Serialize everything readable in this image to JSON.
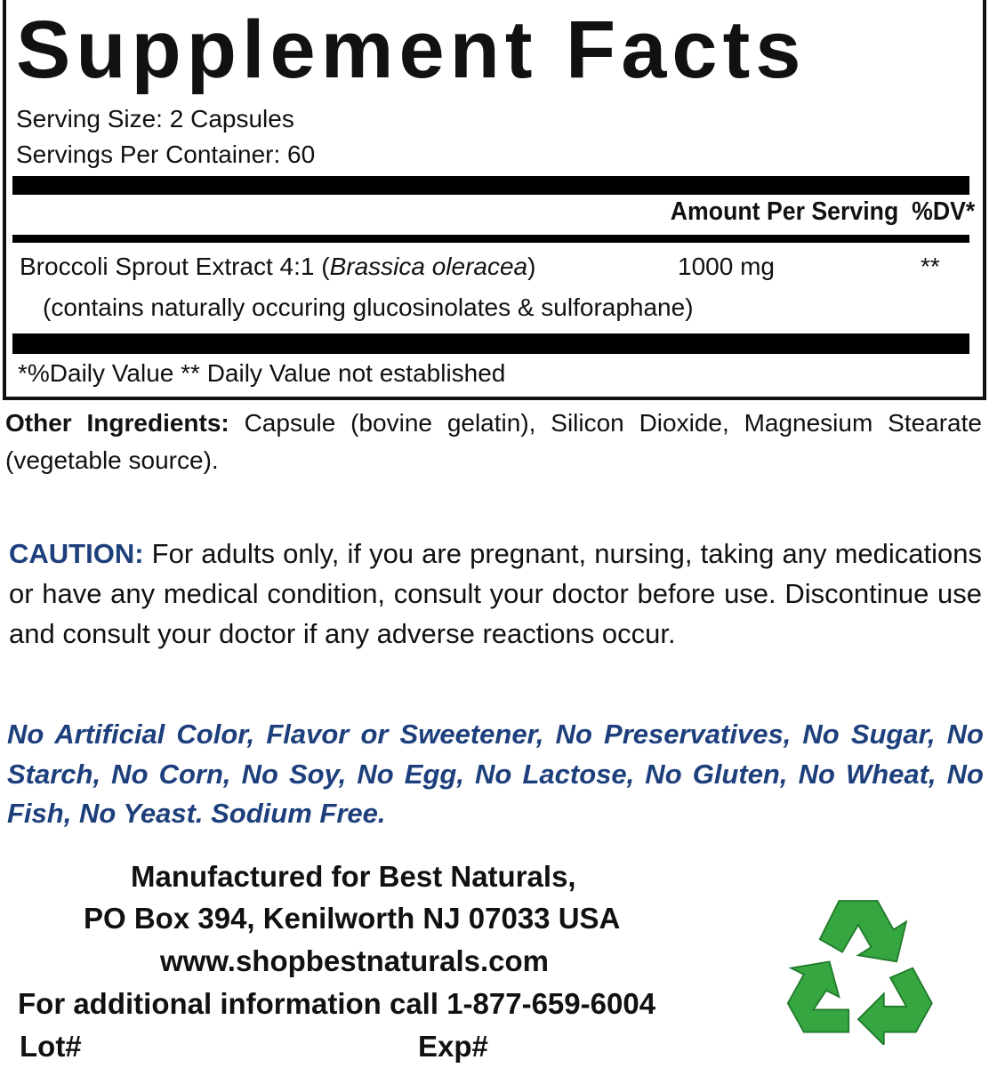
{
  "facts": {
    "title": "Supplement Facts",
    "serving_size": "Serving Size: 2 Capsules",
    "servings_per_container": "Servings Per Container: 60",
    "header_amount": "Amount Per Serving",
    "header_dv": "%DV*",
    "ingredient": {
      "name": "Broccoli Sprout Extract 4:1 (",
      "latin": "Brassica oleracea",
      "close": ")",
      "amount": "1000 mg",
      "dv": "**",
      "note": "(contains naturally occuring glucosinolates & sulforaphane)"
    },
    "footnote": "*%Daily Value ** Daily Value not established"
  },
  "other_ingredients": {
    "label": "Other Ingredients:",
    "text": " Capsule (bovine gelatin), Silicon Dioxide, Magnesium Stearate (vegetable source)."
  },
  "caution": {
    "label": "CAUTION:",
    "text": " For adults only, if you are pregnant, nursing, taking any medications or have any medical condition, consult your doctor before use. Discontinue use and consult your doctor if any adverse reactions occur."
  },
  "free_from": "No Artificial Color, Flavor or Sweetener, No Preservatives, No Sugar, No Starch, No Corn, No Soy, No Egg, No Lactose, No Gluten, No Wheat, No Fish, No Yeast. Sodium Free.",
  "manufacturer": {
    "line1": "Manufactured for Best Naturals,",
    "line2": "PO Box 394, Kenilworth NJ 07033 USA",
    "website": "www.shopbestnaturals.com",
    "phone_line": "For additional information call 1-877-659-6004",
    "lot": "Lot#",
    "exp": "Exp#"
  },
  "colors": {
    "accent_blue": "#1d3f7c",
    "recycle_green": "#2e9a3a"
  },
  "icons": [
    "recycle-icon"
  ]
}
